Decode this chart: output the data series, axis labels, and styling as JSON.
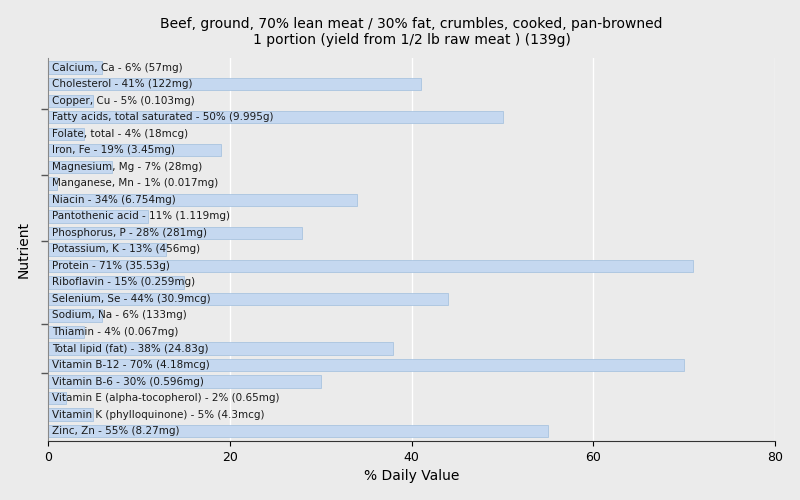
{
  "title": "Beef, ground, 70% lean meat / 30% fat, crumbles, cooked, pan-browned\n1 portion (yield from 1/2 lb raw meat ) (139g)",
  "xlabel": "% Daily Value",
  "ylabel": "Nutrient",
  "background_color": "#ebebeb",
  "bar_color": "#c5d8f0",
  "bar_edge_color": "#a0bedd",
  "xlim": [
    0,
    80
  ],
  "nutrients": [
    {
      "label": "Calcium, Ca - 6% (57mg)",
      "value": 6
    },
    {
      "label": "Cholesterol - 41% (122mg)",
      "value": 41
    },
    {
      "label": "Copper, Cu - 5% (0.103mg)",
      "value": 5
    },
    {
      "label": "Fatty acids, total saturated - 50% (9.995g)",
      "value": 50
    },
    {
      "label": "Folate, total - 4% (18mcg)",
      "value": 4
    },
    {
      "label": "Iron, Fe - 19% (3.45mg)",
      "value": 19
    },
    {
      "label": "Magnesium, Mg - 7% (28mg)",
      "value": 7
    },
    {
      "label": "Manganese, Mn - 1% (0.017mg)",
      "value": 1
    },
    {
      "label": "Niacin - 34% (6.754mg)",
      "value": 34
    },
    {
      "label": "Pantothenic acid - 11% (1.119mg)",
      "value": 11
    },
    {
      "label": "Phosphorus, P - 28% (281mg)",
      "value": 28
    },
    {
      "label": "Potassium, K - 13% (456mg)",
      "value": 13
    },
    {
      "label": "Protein - 71% (35.53g)",
      "value": 71
    },
    {
      "label": "Riboflavin - 15% (0.259mg)",
      "value": 15
    },
    {
      "label": "Selenium, Se - 44% (30.9mcg)",
      "value": 44
    },
    {
      "label": "Sodium, Na - 6% (133mg)",
      "value": 6
    },
    {
      "label": "Thiamin - 4% (0.067mg)",
      "value": 4
    },
    {
      "label": "Total lipid (fat) - 38% (24.83g)",
      "value": 38
    },
    {
      "label": "Vitamin B-12 - 70% (4.18mcg)",
      "value": 70
    },
    {
      "label": "Vitamin B-6 - 30% (0.596mg)",
      "value": 30
    },
    {
      "label": "Vitamin E (alpha-tocopherol) - 2% (0.65mg)",
      "value": 2
    },
    {
      "label": "Vitamin K (phylloquinone) - 5% (4.3mcg)",
      "value": 5
    },
    {
      "label": "Zinc, Zn - 55% (8.27mg)",
      "value": 55
    }
  ],
  "ytick_group_positions": [
    3.5,
    6.5,
    11.5,
    15.5,
    19.5
  ],
  "tick_fontsize": 9,
  "label_fontsize": 7.5,
  "title_fontsize": 10
}
